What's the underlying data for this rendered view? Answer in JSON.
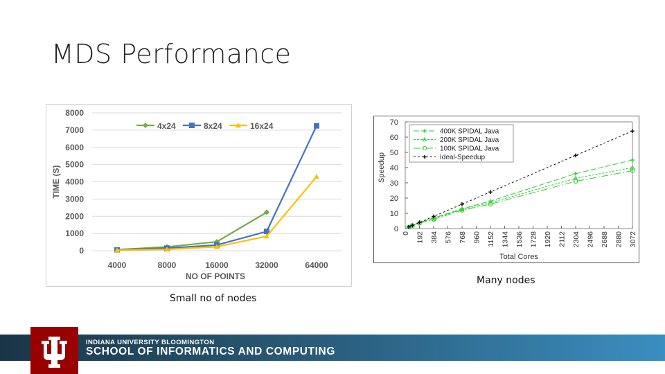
{
  "slide": {
    "title": "MDS Performance"
  },
  "captions": {
    "left": "Small no of nodes",
    "right": "Many nodes"
  },
  "footer": {
    "line1": "INDIANA UNIVERSITY BLOOMINGTON",
    "line2": "SCHOOL OF INFORMATICS AND COMPUTING",
    "brand_color": "#990000"
  },
  "chart_data": [
    {
      "type": "line",
      "title": "",
      "xlabel": "NO OF POINTS",
      "ylabel": "TIME (S)",
      "categories": [
        "4000",
        "8000",
        "16000",
        "32000",
        "64000"
      ],
      "ylim": [
        0,
        8000
      ],
      "yticks": [
        0,
        1000,
        2000,
        3000,
        4000,
        5000,
        6000,
        7000,
        8000
      ],
      "ytick_labels": [
        "0",
        "1000",
        "2000",
        "3000",
        "4000",
        "5000",
        "6000",
        "7000",
        "8000"
      ],
      "grid": true,
      "legend": "top",
      "series": [
        {
          "name": "4x24",
          "color": "#70ad47",
          "marker": "diamond",
          "values": [
            60,
            220,
            520,
            2230,
            null
          ]
        },
        {
          "name": "8x24",
          "color": "#4472c4",
          "marker": "square",
          "values": [
            50,
            150,
            330,
            1120,
            7250
          ]
        },
        {
          "name": "16x24",
          "color": "#ffc000",
          "marker": "triangle",
          "values": [
            30,
            80,
            230,
            840,
            4300
          ]
        }
      ]
    },
    {
      "type": "line",
      "title": "",
      "xlabel": "Total Cores",
      "ylabel": "Speedup",
      "xlim": [
        0,
        3072
      ],
      "ylim": [
        0,
        70
      ],
      "xticks": [
        0,
        192,
        384,
        576,
        768,
        960,
        1152,
        1344,
        1536,
        1728,
        1920,
        2112,
        2304,
        2496,
        2688,
        2880,
        3072
      ],
      "xtick_labels": [
        "0",
        "192",
        "384",
        "576",
        "768",
        "960",
        "1152",
        "1344",
        "1536",
        "1728",
        "1920",
        "2112",
        "2304",
        "2496",
        "2688",
        "2880",
        "3072"
      ],
      "yticks": [
        0,
        10,
        20,
        30,
        40,
        50,
        60,
        70
      ],
      "ytick_labels": [
        "0",
        "10",
        "20",
        "30",
        "40",
        "50",
        "60",
        "70"
      ],
      "legend": "top-left",
      "series": [
        {
          "name": "400K SPIDAL Java",
          "color": "#33cc33",
          "marker": "plus",
          "dash": "8,3",
          "x": [
            48,
            96,
            192,
            384,
            768,
            1152,
            2304,
            3072
          ],
          "y": [
            1,
            2,
            4,
            7,
            13,
            18,
            36,
            45
          ]
        },
        {
          "name": "200K SPIDAL Java",
          "color": "#33cc33",
          "marker": "triangle",
          "dash": "3,2",
          "x": [
            48,
            96,
            192,
            384,
            768,
            1152,
            2304,
            3072
          ],
          "y": [
            1,
            2,
            4,
            6.5,
            12.5,
            17,
            33,
            40
          ]
        },
        {
          "name": "100K SPIDAL Java",
          "color": "#33cc33",
          "marker": "circle",
          "dash": "10,3,2,3",
          "x": [
            48,
            96,
            192,
            384,
            768,
            1152,
            2304,
            3072
          ],
          "y": [
            1,
            2,
            3.5,
            6,
            12,
            16,
            31,
            38
          ]
        },
        {
          "name": "Ideal-Speedup",
          "color": "#111111",
          "marker": "plus",
          "dash": "3,3",
          "x": [
            48,
            96,
            192,
            384,
            768,
            1152,
            2304,
            3072
          ],
          "y": [
            1,
            2,
            4,
            8,
            16,
            24,
            48,
            64
          ]
        }
      ]
    }
  ]
}
